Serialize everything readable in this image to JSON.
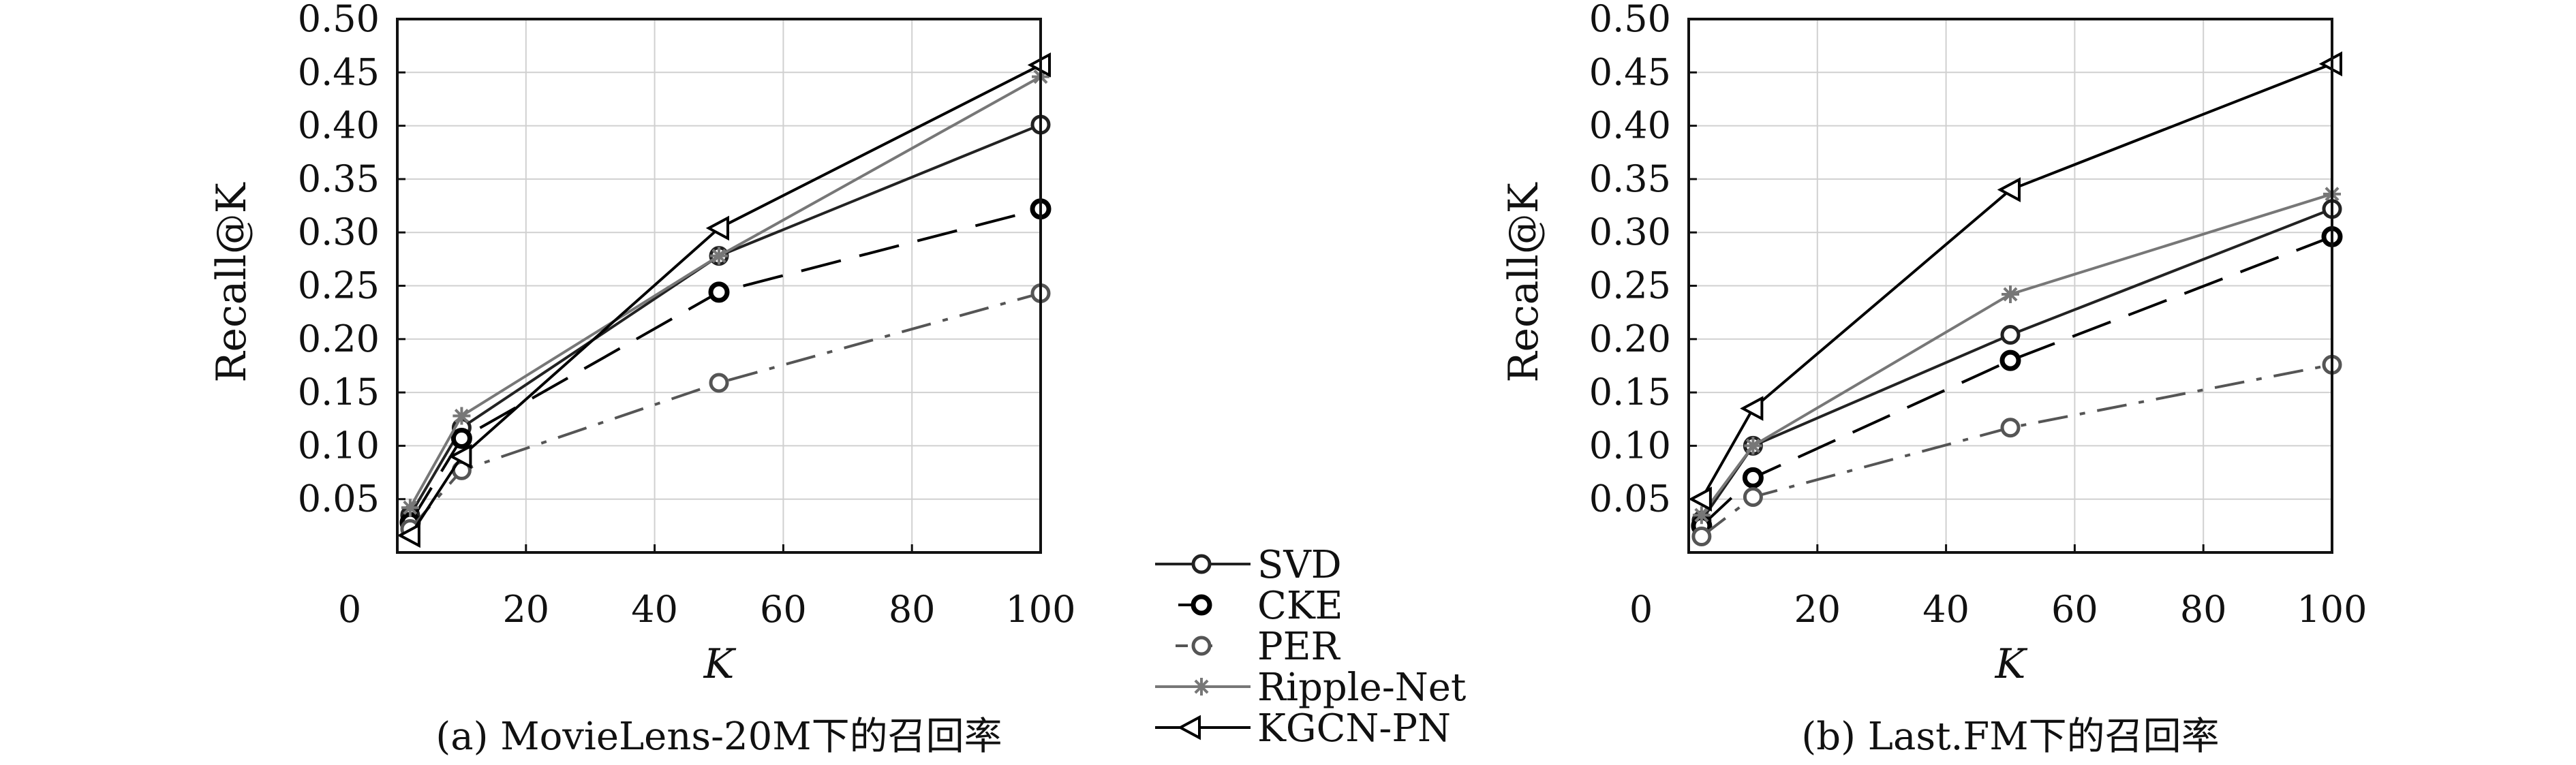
{
  "chart_data": [
    {
      "type": "line",
      "caption": "(a) MovieLens-20M下的召回率",
      "xlabel": "K",
      "ylabel": "Recall@K",
      "xlim": [
        0,
        100
      ],
      "ylim": [
        0,
        0.5
      ],
      "x_ticks": [
        "0",
        "20",
        "40",
        "60",
        "80",
        "100"
      ],
      "y_ticks": [
        "0.05",
        "0.10",
        "0.15",
        "0.20",
        "0.25",
        "0.30",
        "0.35",
        "0.40",
        "0.45",
        "0.50"
      ],
      "grid": true,
      "x": [
        2,
        10,
        50,
        100
      ],
      "series": [
        {
          "name": "SVD",
          "values": [
            0.035,
            0.117,
            0.278,
            0.401
          ]
        },
        {
          "name": "CKE",
          "values": [
            0.028,
            0.107,
            0.244,
            0.322
          ]
        },
        {
          "name": "PER",
          "values": [
            0.022,
            0.077,
            0.159,
            0.243
          ]
        },
        {
          "name": "Ripple-Net",
          "values": [
            0.042,
            0.128,
            0.278,
            0.446
          ]
        },
        {
          "name": "KGCN-PN",
          "values": [
            0.016,
            0.09,
            0.304,
            0.457
          ]
        }
      ]
    },
    {
      "type": "line",
      "caption": "(b) Last.FM下的召回率",
      "xlabel": "K",
      "ylabel": "Recall@K",
      "xlim": [
        0,
        100
      ],
      "ylim": [
        0,
        0.5
      ],
      "x_ticks": [
        "0",
        "20",
        "40",
        "60",
        "80",
        "100"
      ],
      "y_ticks": [
        "0.05",
        "0.10",
        "0.15",
        "0.20",
        "0.25",
        "0.30",
        "0.35",
        "0.40",
        "0.45",
        "0.50"
      ],
      "grid": true,
      "x": [
        2,
        10,
        50,
        100
      ],
      "series": [
        {
          "name": "SVD",
          "values": [
            0.03,
            0.1,
            0.204,
            0.322
          ]
        },
        {
          "name": "CKE",
          "values": [
            0.025,
            0.07,
            0.18,
            0.296
          ]
        },
        {
          "name": "PER",
          "values": [
            0.015,
            0.052,
            0.117,
            0.176
          ]
        },
        {
          "name": "Ripple-Net",
          "values": [
            0.035,
            0.1,
            0.242,
            0.336
          ]
        },
        {
          "name": "KGCN-PN",
          "values": [
            0.05,
            0.135,
            0.34,
            0.458
          ]
        }
      ]
    }
  ],
  "legend": [
    {
      "name": "SVD",
      "color": "#222222",
      "marker": "circle",
      "dash": "solid"
    },
    {
      "name": "CKE",
      "color": "#000000",
      "marker": "circle-bold",
      "dash": "long-dash"
    },
    {
      "name": "PER",
      "color": "#555555",
      "marker": "circle",
      "dash": "dash-dot"
    },
    {
      "name": "Ripple-Net",
      "color": "#777777",
      "marker": "asterisk",
      "dash": "solid"
    },
    {
      "name": "KGCN-PN",
      "color": "#000000",
      "marker": "left-triangle",
      "dash": "solid"
    }
  ]
}
